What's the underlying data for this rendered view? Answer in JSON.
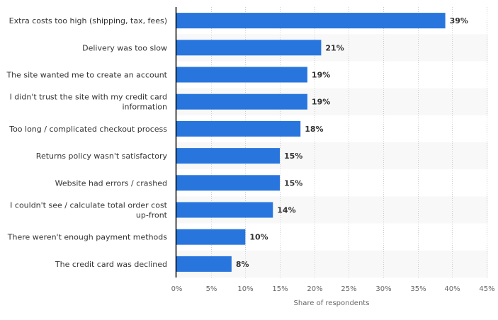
{
  "chart_data": {
    "type": "bar",
    "orientation": "horizontal",
    "categories": [
      [
        "Extra costs too high (shipping, tax, fees)"
      ],
      [
        "Delivery was too slow"
      ],
      [
        "The site wanted me to create an account"
      ],
      [
        "I didn't trust the site with my credit card",
        "information"
      ],
      [
        "Too long / complicated checkout process"
      ],
      [
        "Returns policy wasn't satisfactory"
      ],
      [
        "Website had errors / crashed"
      ],
      [
        "I couldn't see / calculate total order cost",
        "up-front"
      ],
      [
        "There weren't enough payment methods"
      ],
      [
        "The credit card was declined"
      ]
    ],
    "values": [
      39,
      21,
      19,
      19,
      18,
      15,
      15,
      14,
      10,
      8
    ],
    "value_labels": [
      "39%",
      "21%",
      "19%",
      "19%",
      "18%",
      "15%",
      "15%",
      "14%",
      "10%",
      "8%"
    ],
    "xlabel": "Share of respondents",
    "xlim": [
      0,
      45
    ],
    "xticks": [
      0,
      5,
      10,
      15,
      20,
      25,
      30,
      35,
      40,
      45
    ],
    "xtick_labels": [
      "0%",
      "5%",
      "10%",
      "15%",
      "20%",
      "25%",
      "30%",
      "35%",
      "40%",
      "45%"
    ],
    "grid": true,
    "bar_color": "#2876dd"
  }
}
